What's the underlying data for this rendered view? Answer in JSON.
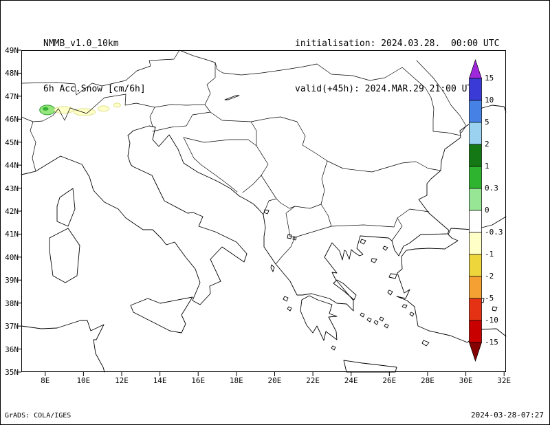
{
  "header": {
    "model": "NMMB_v1.0_10km",
    "field": "6h Acc.Snow [cm/6h]",
    "init": "initialisation: 2024.03.28.  00:00 UTC",
    "valid": "valid(+45h): 2024.MAR.29 21:00 UTC"
  },
  "footer": {
    "credit": "GrADS: COLA/IGES",
    "timestamp": "2024-03-28-07:27"
  },
  "map": {
    "lon_range": [
      6.75,
      32.1
    ],
    "lat_range": [
      35,
      49
    ],
    "lat_ticks": [
      {
        "label": "49N",
        "deg": 49
      },
      {
        "label": "48N",
        "deg": 48
      },
      {
        "label": "47N",
        "deg": 47
      },
      {
        "label": "46N",
        "deg": 46
      },
      {
        "label": "45N",
        "deg": 45
      },
      {
        "label": "44N",
        "deg": 44
      },
      {
        "label": "43N",
        "deg": 43
      },
      {
        "label": "42N",
        "deg": 42
      },
      {
        "label": "41N",
        "deg": 41
      },
      {
        "label": "40N",
        "deg": 40
      },
      {
        "label": "39N",
        "deg": 39
      },
      {
        "label": "38N",
        "deg": 38
      },
      {
        "label": "37N",
        "deg": 37
      },
      {
        "label": "36N",
        "deg": 36
      },
      {
        "label": "35N",
        "deg": 35
      }
    ],
    "lon_ticks": [
      {
        "label": "8E",
        "deg": 8
      },
      {
        "label": "10E",
        "deg": 10
      },
      {
        "label": "12E",
        "deg": 12
      },
      {
        "label": "14E",
        "deg": 14
      },
      {
        "label": "16E",
        "deg": 16
      },
      {
        "label": "18E",
        "deg": 18
      },
      {
        "label": "20E",
        "deg": 20
      },
      {
        "label": "22E",
        "deg": 22
      },
      {
        "label": "24E",
        "deg": 24
      },
      {
        "label": "26E",
        "deg": 26
      },
      {
        "label": "28E",
        "deg": 28
      },
      {
        "label": "30E",
        "deg": 30
      },
      {
        "label": "32E",
        "deg": 32
      }
    ]
  },
  "colorbar": {
    "arrow_top_color": "#a028dc",
    "arrow_bottom_color": "#850000",
    "segment_colors": [
      "#3a3ad6",
      "#4682e6",
      "#9ad2f0",
      "#147814",
      "#2eb42e",
      "#96e696",
      "#ffffff",
      "#ffffc8",
      "#edd53c",
      "#f5a032",
      "#e63214",
      "#c80000"
    ],
    "levels": [
      "15",
      "10",
      "5",
      "2",
      "1",
      "0.3",
      "0",
      "-0.3",
      "-1",
      "-2",
      "-5",
      "-10",
      "-15"
    ]
  },
  "chart_data": {
    "type": "map",
    "variable": "6h accumulated snow [cm/6h]",
    "model": "NMMB_v1.0_10km",
    "initialisation": "2024.03.28 00:00 UTC",
    "valid": "2024.MAR.29 21:00 UTC (+45h)",
    "lon_range_deg_east": [
      8,
      32
    ],
    "lat_range_deg_north": [
      35,
      49
    ],
    "snow_patches": [
      {
        "lon": 8.11,
        "lat": 46.4,
        "rlon": 0.4,
        "rlat": 0.21,
        "fill": "#96e67d",
        "stroke": "#2ca02c",
        "band_cm": "0.3-1"
      },
      {
        "lon": 8.02,
        "lat": 46.45,
        "rlon": 0.15,
        "rlat": 0.08,
        "fill": "#35b235",
        "stroke": "none",
        "band_cm": "~1"
      },
      {
        "lon": 8.97,
        "lat": 46.4,
        "rlon": 0.5,
        "rlat": 0.15,
        "fill": "#ffffc8",
        "stroke": "#e0e090",
        "band_cm": "<0.3"
      },
      {
        "lon": 10.05,
        "lat": 46.31,
        "rlon": 0.57,
        "rlat": 0.15,
        "fill": "#ffffc8",
        "stroke": "#e0e090",
        "band_cm": "<0.3"
      },
      {
        "lon": 11.05,
        "lat": 46.46,
        "rlon": 0.29,
        "rlat": 0.12,
        "fill": "#ffffc8",
        "stroke": "#e0e090",
        "band_cm": "<0.3"
      },
      {
        "lon": 11.76,
        "lat": 46.61,
        "rlon": 0.18,
        "rlat": 0.09,
        "fill": "#ffffc8",
        "stroke": "#e0e090",
        "band_cm": "<0.3"
      }
    ]
  }
}
